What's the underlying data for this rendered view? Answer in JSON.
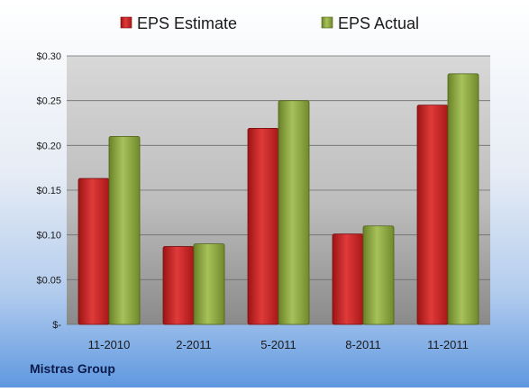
{
  "company": "Mistras Group",
  "colors": {
    "estimate": "#d42020",
    "actual": "#8faa3c"
  },
  "chart_data": {
    "type": "bar",
    "categories": [
      "11-2010",
      "2-2011",
      "5-2011",
      "8-2011",
      "11-2011"
    ],
    "series": [
      {
        "name": "EPS Estimate",
        "values": [
          0.163,
          0.087,
          0.219,
          0.101,
          0.245
        ]
      },
      {
        "name": "EPS Actual",
        "values": [
          0.21,
          0.09,
          0.25,
          0.11,
          0.28
        ]
      }
    ],
    "yticks": [
      "$-",
      "$0.05",
      "$0.10",
      "$0.15",
      "$0.20",
      "$0.25",
      "$0.30"
    ],
    "ylim": [
      0,
      0.3
    ],
    "grid": true,
    "legend": "top"
  }
}
